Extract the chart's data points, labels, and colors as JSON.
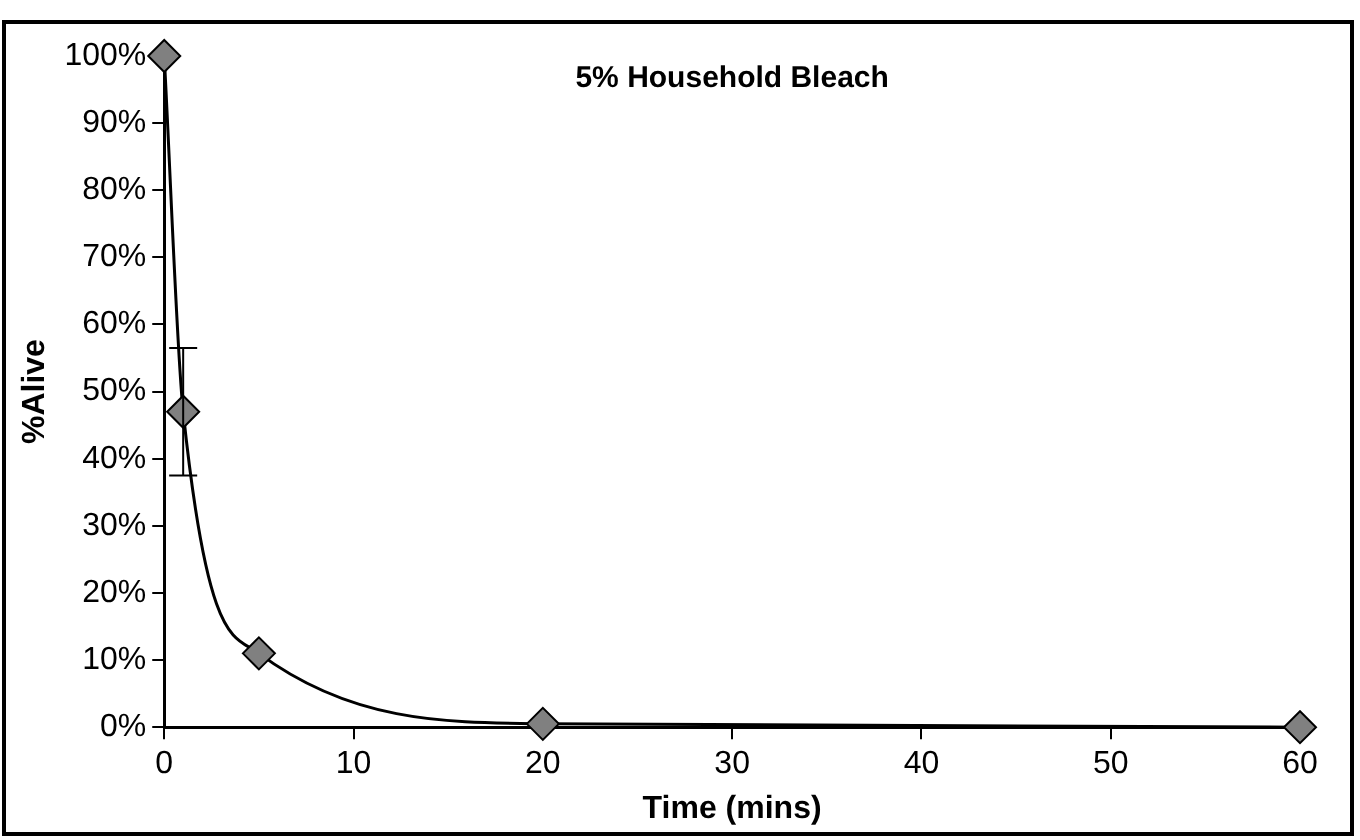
{
  "chart_data": {
    "type": "scatter",
    "title": "5% Household Bleach",
    "xlabel": "Time (mins)",
    "ylabel": "%Alive",
    "x": [
      0,
      1,
      5,
      20,
      60
    ],
    "series": [
      {
        "type": "scatter",
        "color": "#808080",
        "marker": "diamond",
        "values": [
          100,
          47,
          11,
          0.5,
          0
        ],
        "errors": [
          null,
          [
            37.5,
            56.5
          ],
          null,
          null,
          null
        ]
      },
      {
        "type": "line",
        "color": "#000000",
        "marker": "none",
        "line_style": "solid",
        "values": [
          100,
          47,
          11,
          0.5,
          0
        ]
      }
    ],
    "xlim": [
      0,
      60
    ],
    "xticks": [
      0,
      10,
      20,
      30,
      40,
      50,
      60
    ],
    "ylim": [
      0,
      100
    ],
    "yticks": [
      {
        "value": 0,
        "label": "0%"
      },
      {
        "value": 10,
        "label": "10%"
      },
      {
        "value": 20,
        "label": "20%"
      },
      {
        "value": 30,
        "label": "30%"
      },
      {
        "value": 40,
        "label": "40%"
      },
      {
        "value": 50,
        "label": "50%"
      },
      {
        "value": 60,
        "label": "60%"
      },
      {
        "value": 70,
        "label": "70%"
      },
      {
        "value": 80,
        "label": "80%"
      },
      {
        "value": 90,
        "label": "90%"
      },
      {
        "value": 100,
        "label": "100%"
      }
    ],
    "grid": false,
    "legend": false
  }
}
